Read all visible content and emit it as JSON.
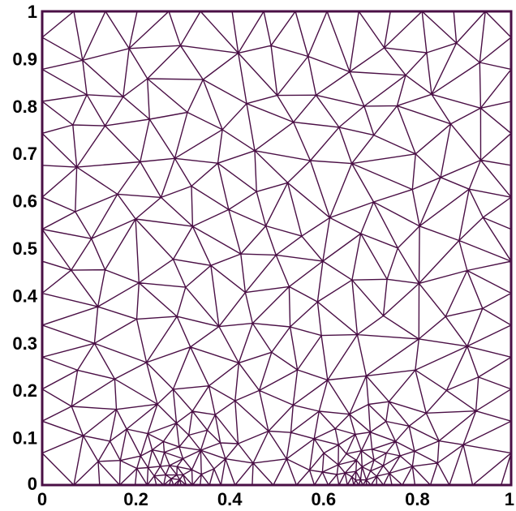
{
  "mesh": {
    "type": "triangular-mesh",
    "x_range": [
      0,
      1
    ],
    "y_range": [
      0,
      1
    ],
    "edge_color": "#4a0f45",
    "refinement_centers_x": [
      0.28,
      0.68
    ],
    "x_ticks": [
      "0",
      "0.2",
      "0.4",
      "0.6",
      "0.8",
      "1"
    ],
    "y_ticks": [
      "0",
      "0.1",
      "0.2",
      "0.3",
      "0.4",
      "0.5",
      "0.6",
      "0.7",
      "0.8",
      "0.9",
      "1"
    ]
  }
}
